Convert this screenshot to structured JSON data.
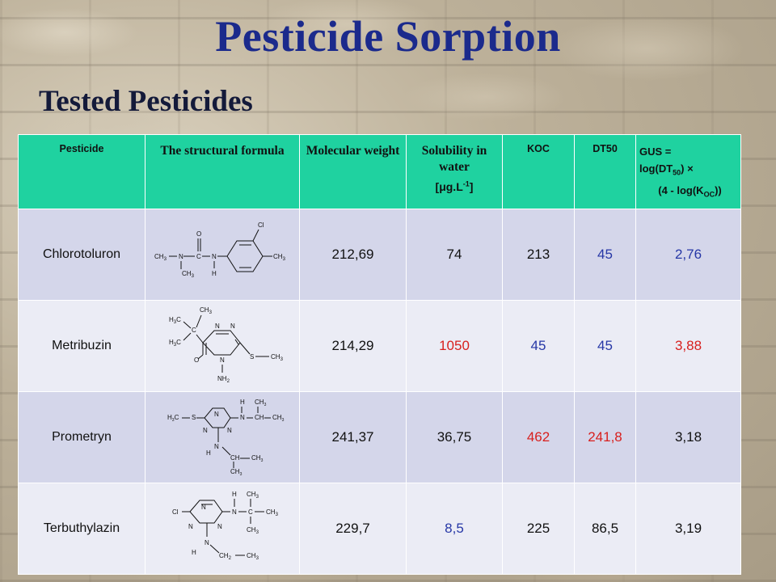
{
  "title": "Pesticide Sorption",
  "subtitle": "Tested Pesticides",
  "table": {
    "headers": {
      "pesticide": "Pesticide",
      "formula": "The structural formula",
      "mw": "Molecular weight",
      "solubility": "Solubility in water",
      "solubility_unit": "[μg.L",
      "solubility_unit_exp": "-1",
      "solubility_unit_end": "]",
      "koc": "KOC",
      "dt50": "DT50",
      "gus_line1": "GUS =",
      "gus_line2a": "log(DT",
      "gus_line2_sub": "50",
      "gus_line2b": ") ×",
      "gus_line3a": "(4 - log(K",
      "gus_line3_sub": "OC",
      "gus_line3b": "))"
    },
    "rows": [
      {
        "name": "Chlorotoluron",
        "mw": "212,69",
        "solubility": "74",
        "koc": "213",
        "dt50": "45",
        "gus": "2,76",
        "colors": {
          "solubility": "#111111",
          "koc": "#111111",
          "dt50": "#2637a6",
          "gus": "#2637a6"
        }
      },
      {
        "name": "Metribuzin",
        "mw": "214,29",
        "solubility": "1050",
        "koc": "45",
        "dt50": "45",
        "gus": "3,88",
        "colors": {
          "solubility": "#d8201e",
          "koc": "#2637a6",
          "dt50": "#2637a6",
          "gus": "#d8201e"
        }
      },
      {
        "name": "Prometryn",
        "mw": "241,37",
        "solubility": "36,75",
        "koc": "462",
        "dt50": "241,8",
        "gus": "3,18",
        "colors": {
          "solubility": "#111111",
          "koc": "#d8201e",
          "dt50": "#d8201e",
          "gus": "#111111"
        }
      },
      {
        "name": "Terbuthylazin",
        "mw": "229,7",
        "solubility": "8,5",
        "koc": "225",
        "dt50": "86,5",
        "gus": "3,19",
        "colors": {
          "solubility": "#2637a6",
          "koc": "#111111",
          "dt50": "#111111",
          "gus": "#111111"
        }
      }
    ],
    "structure_labels": {
      "chlorotoluron": {
        "o": "O",
        "c": "C",
        "n1": "N",
        "n2": "N",
        "h": "H",
        "ch3a": "CH",
        "ch3b": "CH",
        "ch3c": "CH",
        "cl": "Cl",
        "three": "3"
      },
      "metribuzin": {
        "h3c1": "H",
        "h3c2": "H",
        "ch3": "CH",
        "c": "C",
        "n1": "N",
        "n2": "N",
        "o": "O",
        "n3": "N",
        "nh2": "NH",
        "s": "S",
        "sch3": "CH",
        "three": "3",
        "two": "2"
      },
      "prometryn": {
        "h3cs": "H",
        "s": "S",
        "n1": "N",
        "n2": "N",
        "n3": "N",
        "nh": "N",
        "h": "H",
        "ch": "CH",
        "ch3a": "CH",
        "ch3b": "CH",
        "three": "3",
        "c3": "C"
      },
      "terbuthylazin": {
        "cl": "Cl",
        "n1": "N",
        "n2": "N",
        "n3": "N",
        "nh": "N",
        "h": "H",
        "c": "C",
        "ch3a": "CH",
        "ch3b": "CH",
        "ch3c": "CH",
        "ch2": "CH",
        "three": "3",
        "two": "2"
      }
    }
  },
  "colors": {
    "title": "#1b2a8c",
    "header_bg": "#1fd2a0",
    "row_odd": "#d4d6ea",
    "row_even": "#ebecf5",
    "blue_value": "#2637a6",
    "red_value": "#d8201e"
  }
}
